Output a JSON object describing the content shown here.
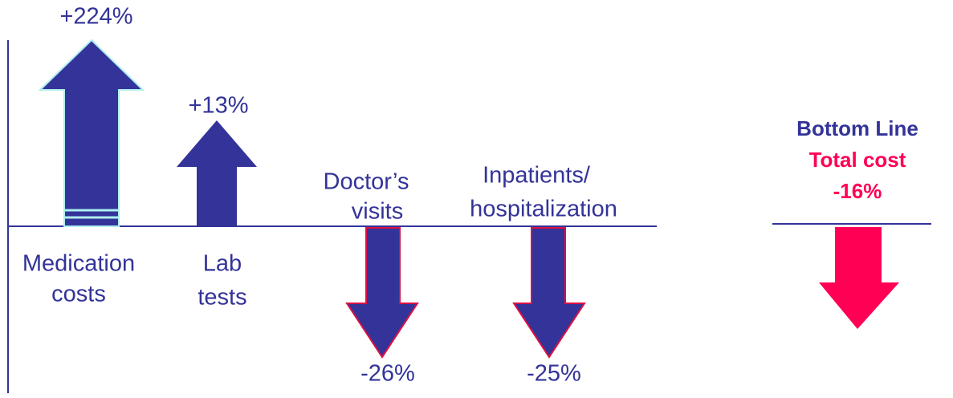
{
  "items": [
    {
      "label_lines": [
        "Medication",
        "costs"
      ],
      "change": "+224%"
    },
    {
      "label_lines": [
        "Lab",
        "tests"
      ],
      "change": "+13%"
    },
    {
      "label_lines": [
        "Doctor’s",
        "visits"
      ],
      "change": "-26%"
    },
    {
      "label_lines": [
        "Inpatients/",
        "hospitalization"
      ],
      "change": "-25%"
    }
  ],
  "bottom_line": {
    "title": "Bottom Line",
    "label": "Total cost",
    "change": "-16%"
  }
}
